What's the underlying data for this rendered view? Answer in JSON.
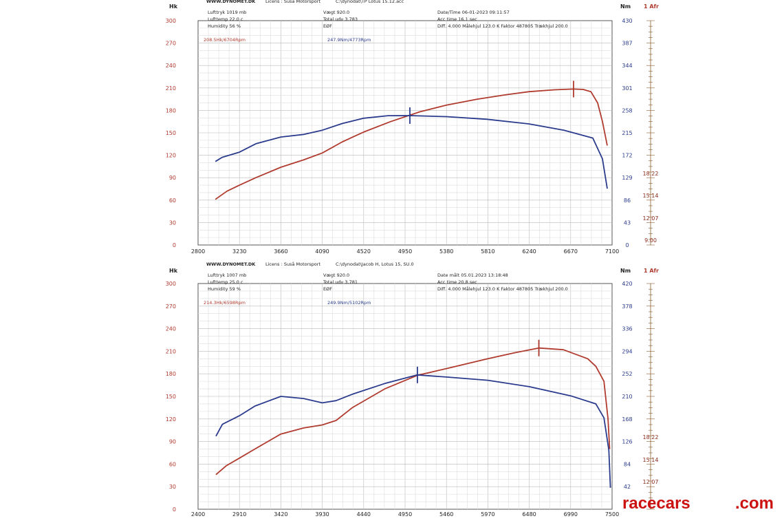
{
  "chart_data": [
    {
      "type": "line",
      "header": {
        "site": "WWW.DYNOMET.DK",
        "license": "Licens : Suså Motorsport",
        "file": "C:\\dynodat\\TP Lotus 15.12.acc",
        "info_left": [
          "Lufttryk   1019 mb",
          "Lufttemp   22.0 c",
          "Humidity    56 %"
        ],
        "info_mid": [
          "Vægt       920.0",
          "Total udv 3.783",
          "EØF"
        ],
        "info_right": [
          "Date/Time  06-01-2023 09:11:57",
          "Acc time    16.1 sec",
          "Diff.     4.000   Målehjul 123.0   K Faktor 487805   Trækhjul 200.0"
        ],
        "peak_power_label": "208.5Hk/6704Rpm",
        "peak_torque_label": "247.9Nm/4773Rpm"
      },
      "ylabel_left": "Hk",
      "ylabel_right": "Nm",
      "ylabel_afr": "1 Afr",
      "x_ticks": [
        "2800",
        "3230",
        "3660",
        "4090",
        "4520",
        "4950",
        "5380",
        "5810",
        "6240",
        "6670",
        "7100"
      ],
      "xlim": [
        2800,
        7100
      ],
      "left_ticks": [
        "300",
        "270",
        "240",
        "210",
        "180",
        "150",
        "120",
        "90",
        "60",
        "30",
        "0"
      ],
      "ylim_left": [
        0,
        300
      ],
      "right_ticks": [
        "430",
        "387",
        "344",
        "301",
        "258",
        "215",
        "172",
        "129",
        "86",
        "43",
        "0"
      ],
      "ylim_right": [
        0,
        430
      ],
      "afr_ticks": [
        "18.22",
        "15.14",
        "12.07",
        "9.00"
      ],
      "series": [
        {
          "name": "Hk",
          "color": "#b03a2e",
          "x": [
            2980,
            3100,
            3230,
            3400,
            3660,
            3900,
            4090,
            4300,
            4520,
            4800,
            5100,
            5380,
            5700,
            6000,
            6240,
            6500,
            6700,
            6800,
            6880,
            6950,
            7000,
            7050
          ],
          "y": [
            61,
            72,
            80,
            90,
            104,
            114,
            123,
            138,
            151,
            165,
            178,
            187,
            195,
            201,
            205,
            207.5,
            208.5,
            208,
            205,
            190,
            165,
            133
          ]
        },
        {
          "name": "Nm",
          "color": "#2a3a8c",
          "x": [
            2980,
            3050,
            3230,
            3400,
            3660,
            3900,
            4090,
            4300,
            4520,
            4773,
            5000,
            5380,
            5800,
            6240,
            6600,
            6900,
            7000,
            7050
          ],
          "y": [
            160,
            168,
            178,
            194,
            207,
            212,
            220,
            233,
            243,
            247.9,
            248,
            246,
            241,
            232,
            220,
            205,
            165,
            108
          ]
        }
      ]
    },
    {
      "type": "line",
      "header": {
        "site": "WWW.DYNOMET.DK",
        "license": "Licens : Suså Motorsport",
        "file": "C:\\dynodat\\Jacob H, Lotus 15, SU.0",
        "info_left": [
          "Lufttryk   1007 mb",
          "Lufttemp   25.0 c",
          "Humidity    59 %"
        ],
        "info_mid": [
          "Vægt      920.0",
          "Total udv 3.781",
          "EØF"
        ],
        "info_right": [
          "Date målt 05.01.2023 13:18:48",
          "Acc time    20.8 sec",
          "Diff.     4.000   Målehjul 123.0   K Faktor 487805   Trækhjul 200.0"
        ],
        "peak_power_label": "214.3Hk/6598Rpm",
        "peak_torque_label": "249.9Nm/5102Rpm"
      },
      "ylabel_left": "Hk",
      "ylabel_right": "Nm",
      "ylabel_afr": "1 Afr",
      "x_ticks": [
        "2400",
        "2910",
        "3420",
        "3930",
        "4440",
        "4950",
        "5460",
        "5970",
        "6480",
        "6990",
        "7500"
      ],
      "xlim": [
        2400,
        7500
      ],
      "left_ticks": [
        "300",
        "270",
        "240",
        "210",
        "180",
        "150",
        "120",
        "90",
        "60",
        "30",
        "0"
      ],
      "ylim_left": [
        0,
        300
      ],
      "right_ticks": [
        "420",
        "378",
        "336",
        "294",
        "252",
        "210",
        "168",
        "126",
        "84",
        "42"
      ],
      "ylim_right": [
        0,
        420
      ],
      "afr_ticks": [
        "18.22",
        "15.14",
        "12.07"
      ],
      "series": [
        {
          "name": "Hk",
          "color": "#b03a2e",
          "x": [
            2620,
            2750,
            2910,
            3100,
            3420,
            3700,
            3930,
            4100,
            4300,
            4700,
            5102,
            5500,
            5970,
            6300,
            6598,
            6900,
            7200,
            7300,
            7400,
            7450,
            7470
          ],
          "y": [
            46,
            58,
            68,
            80,
            100,
            108,
            112,
            118,
            135,
            160,
            178,
            188,
            200,
            208,
            214.3,
            212,
            200,
            190,
            170,
            120,
            80
          ]
        },
        {
          "name": "Nm",
          "color": "#2a3a8c",
          "x": [
            2620,
            2700,
            2910,
            3100,
            3420,
            3700,
            3930,
            4100,
            4300,
            4700,
            5102,
            5460,
            5970,
            6480,
            6990,
            7300,
            7400,
            7460,
            7480
          ],
          "y": [
            136,
            158,
            174,
            192,
            210,
            206,
            198,
            202,
            214,
            234,
            249.9,
            246,
            240,
            228,
            211,
            196,
            170,
            110,
            40
          ]
        }
      ]
    }
  ],
  "watermark": {
    "part1": "racecars",
    "part2": ".com"
  }
}
